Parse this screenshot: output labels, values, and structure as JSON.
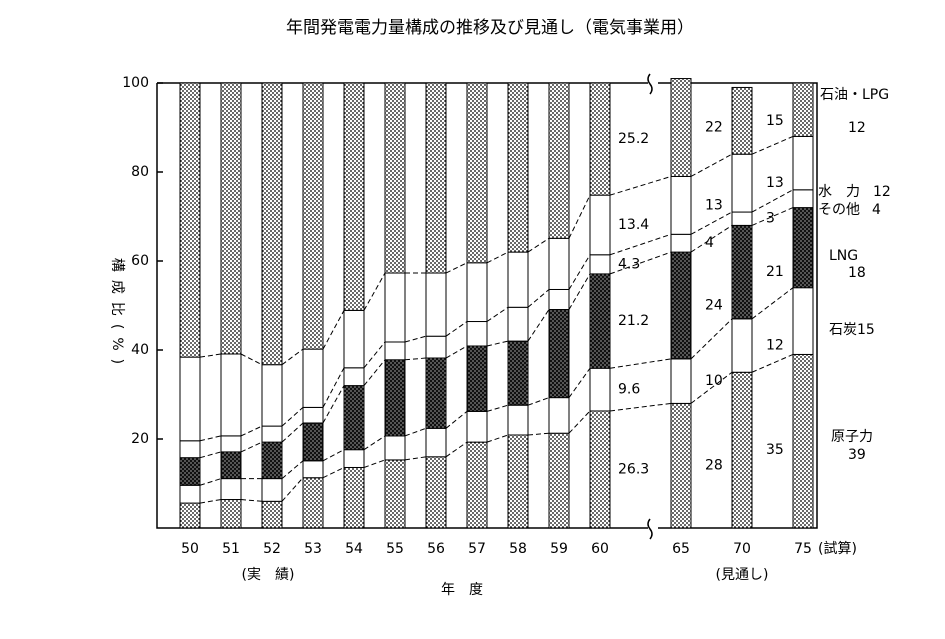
{
  "chart_data": {
    "type": "stacked-bar",
    "title": "年間発電電力量構成の推移及び見通し（電気事業用）",
    "y_label": "構成比(%)",
    "x_label": "年　度",
    "annotations": [
      "(実　績)",
      "(見通し)",
      "(試算)"
    ],
    "categories": [
      "50",
      "51",
      "52",
      "53",
      "54",
      "55",
      "56",
      "57",
      "58",
      "59",
      "60",
      "65",
      "70",
      "75"
    ],
    "ylim": [
      0,
      100
    ],
    "yticks": [
      20,
      40,
      60,
      80,
      100
    ],
    "series": [
      {
        "name": "原子力",
        "pattern": "dots",
        "values": [
          5.6,
          6.4,
          6.0,
          11.3,
          13.6,
          15.3,
          16.0,
          19.3,
          20.9,
          21.3,
          26.3,
          28,
          35,
          39
        ],
        "value_labels": [
          null,
          null,
          null,
          null,
          null,
          null,
          null,
          null,
          null,
          null,
          "26.3",
          "28",
          "35",
          "39"
        ]
      },
      {
        "name": "石炭",
        "pattern": "none",
        "values": [
          4.0,
          4.7,
          5.1,
          3.8,
          4.0,
          5.4,
          6.4,
          6.9,
          6.7,
          8.0,
          9.6,
          10,
          12,
          15
        ],
        "value_labels": [
          null,
          null,
          null,
          null,
          null,
          null,
          null,
          null,
          null,
          null,
          "9.6",
          "10",
          "12",
          "15"
        ]
      },
      {
        "name": "LNG",
        "pattern": "dark-dots",
        "values": [
          6.2,
          6.0,
          8.2,
          8.5,
          14.4,
          17.1,
          15.8,
          14.7,
          14.4,
          19.8,
          21.2,
          24,
          21,
          18
        ],
        "value_labels": [
          null,
          null,
          null,
          null,
          null,
          null,
          null,
          null,
          null,
          null,
          "21.2",
          "24",
          "21",
          "18"
        ]
      },
      {
        "name": "その他",
        "pattern": "none",
        "values": [
          3.8,
          3.6,
          3.6,
          3.5,
          4.0,
          4.0,
          4.9,
          5.5,
          7.6,
          4.5,
          4.3,
          4,
          3,
          4
        ],
        "value_labels": [
          null,
          null,
          null,
          null,
          null,
          null,
          null,
          null,
          null,
          null,
          "4.3",
          "4",
          "3",
          "4"
        ]
      },
      {
        "name": "水　力",
        "pattern": "none",
        "values": [
          18.8,
          18.4,
          13.8,
          13.1,
          12.9,
          15.5,
          14.2,
          13.2,
          12.4,
          11.5,
          13.4,
          13,
          13,
          12
        ],
        "value_labels": [
          null,
          null,
          null,
          null,
          null,
          null,
          null,
          null,
          null,
          null,
          "13.4",
          "13",
          "13",
          "12"
        ]
      },
      {
        "name": "石油・LPG",
        "pattern": "dots",
        "values": [
          61.6,
          60.9,
          63.3,
          59.8,
          51.1,
          42.7,
          42.7,
          40.4,
          38.0,
          34.9,
          25.2,
          22,
          15,
          12
        ],
        "value_labels": [
          null,
          null,
          null,
          null,
          null,
          null,
          null,
          null,
          null,
          null,
          "25.2",
          "22",
          "15",
          "12"
        ]
      }
    ]
  }
}
